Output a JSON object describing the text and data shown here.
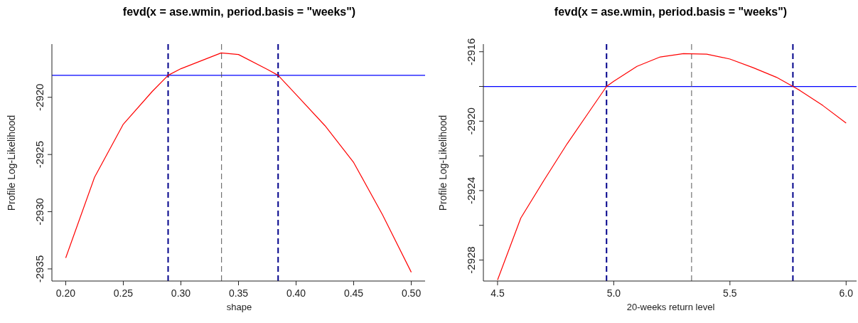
{
  "chart_data": [
    {
      "type": "line",
      "title": "fevd(x = ase.wmin, period.basis = \"weeks\")",
      "xlabel": "shape",
      "ylabel": "Profile Log-Likelihood",
      "xlim": [
        0.188,
        0.512
      ],
      "xticks": [
        {
          "value": 0.2,
          "label": "0.20"
        },
        0.25,
        {
          "value": 0.3,
          "label": "0.30"
        },
        0.35,
        {
          "value": 0.4,
          "label": "0.40"
        },
        0.45,
        {
          "value": 0.5,
          "label": "0.50"
        }
      ],
      "ylim": [
        -2936.06,
        -2915.35
      ],
      "yticks": [
        -2935,
        -2930,
        -2925,
        -2920
      ],
      "series": [
        {
          "color": "#ff0000",
          "x": [
            0.2,
            0.225,
            0.25,
            0.275,
            0.2889,
            0.3,
            0.335,
            0.35,
            0.375,
            0.3844,
            0.4,
            0.425,
            0.45,
            0.475,
            0.5
          ],
          "values": [
            -2934.04,
            -2927.0,
            -2922.35,
            -2919.5,
            -2918.08,
            -2917.5,
            -2916.12,
            -2916.26,
            -2917.56,
            -2918.08,
            -2919.76,
            -2922.47,
            -2925.7,
            -2930.26,
            -2935.29
          ]
        }
      ],
      "ref_lines": [
        {
          "axis": "y",
          "value": -2918.08,
          "color": "#0000ff",
          "line_style": "solid"
        },
        {
          "axis": "x",
          "value": 0.2889,
          "color": "#00008b",
          "line_style": "dashed"
        },
        {
          "axis": "x",
          "value": 0.3844,
          "color": "#00008b",
          "line_style": "dashed"
        },
        {
          "axis": "x",
          "value": 0.3353,
          "color": "#555555",
          "line_style": "dashed"
        }
      ],
      "grid": false,
      "legend": false,
      "marker": "none",
      "line_style": "solid"
    },
    {
      "type": "line",
      "title": "fevd(x = ase.wmin, period.basis = \"weeks\")",
      "xlabel": "20-weeks return level",
      "ylabel": "Profile Log-Likelihood",
      "xlim": [
        4.439,
        6.045
      ],
      "xticks": [
        4.5,
        {
          "value": 5,
          "label": "5.0"
        },
        5.5,
        {
          "value": 6,
          "label": "6.0"
        }
      ],
      "ylim": [
        -2929.21,
        -2915.56
      ],
      "yticks": [
        -2928,
        {
          "value": -2926,
          "label": null
        },
        -2924,
        {
          "value": -2922,
          "label": null
        },
        -2920,
        {
          "value": -2918,
          "label": null
        },
        -2916
      ],
      "series": [
        {
          "color": "#ff0000",
          "x": [
            4.5,
            4.6,
            4.7,
            4.8,
            4.9,
            4.969,
            5.0,
            5.1,
            5.2,
            5.3,
            5.4,
            5.5,
            5.6,
            5.7,
            5.771,
            5.8,
            5.9,
            6.0
          ],
          "values": [
            -2929.15,
            -2925.58,
            -2923.4,
            -2921.29,
            -2919.34,
            -2918.0,
            -2917.7,
            -2916.84,
            -2916.3,
            -2916.11,
            -2916.14,
            -2916.42,
            -2916.92,
            -2917.47,
            -2918.0,
            -2918.22,
            -2919.1,
            -2920.11
          ]
        }
      ],
      "ref_lines": [
        {
          "axis": "y",
          "value": -2918.0,
          "color": "#0000ff",
          "line_style": "solid"
        },
        {
          "axis": "x",
          "value": 4.969,
          "color": "#00008b",
          "line_style": "dashed"
        },
        {
          "axis": "x",
          "value": 5.771,
          "color": "#00008b",
          "line_style": "dashed"
        },
        {
          "axis": "x",
          "value": 5.335,
          "color": "#555555",
          "line_style": "dashed"
        }
      ],
      "grid": false,
      "legend": false,
      "marker": "none",
      "line_style": "solid"
    }
  ]
}
